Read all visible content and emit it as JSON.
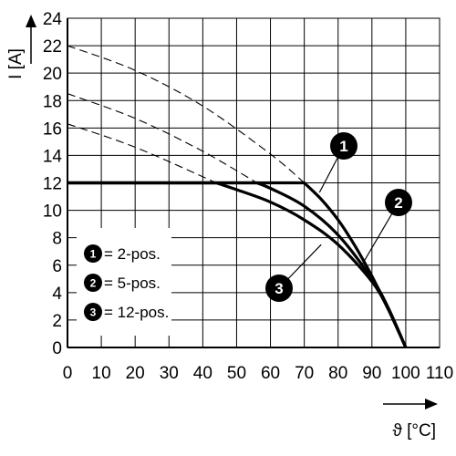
{
  "chart_data": {
    "type": "line",
    "xlabel": "ϑ [°C]",
    "ylabel": "I [A]",
    "xlim": [
      0,
      110
    ],
    "ylim": [
      0,
      24
    ],
    "x_ticks": [
      "0",
      "10",
      "20",
      "30",
      "40",
      "50",
      "60",
      "70",
      "80",
      "90",
      "100",
      "110"
    ],
    "y_ticks": [
      "0",
      "2",
      "4",
      "6",
      "8",
      "10",
      "12",
      "14",
      "16",
      "18",
      "20",
      "22",
      "24"
    ],
    "grid": true,
    "legend_position": "bottom-left",
    "legend": [
      {
        "marker": "1",
        "label": "= 2-pos."
      },
      {
        "marker": "2",
        "label": "= 5-pos."
      },
      {
        "marker": "3",
        "label": "= 12-pos."
      }
    ],
    "series": [
      {
        "name": "2-pos.",
        "marker": "1",
        "x": [
          0,
          70,
          75,
          80,
          85,
          90,
          95,
          100
        ],
        "y": [
          12,
          12,
          10.8,
          9.3,
          7.4,
          5.2,
          2.7,
          0
        ],
        "unlimited_x": [
          0,
          20,
          40,
          60,
          70
        ],
        "unlimited_y": [
          22,
          20.2,
          17.6,
          14.1,
          12
        ]
      },
      {
        "name": "5-pos.",
        "marker": "2",
        "x": [
          0,
          56,
          60,
          70,
          80,
          90,
          95,
          100
        ],
        "y": [
          12,
          12,
          11.6,
          10.3,
          8.2,
          5.0,
          2.8,
          0
        ],
        "unlimited_x": [
          0,
          20,
          40,
          56
        ],
        "unlimited_y": [
          18.5,
          16.7,
          14.3,
          12
        ]
      },
      {
        "name": "12-pos.",
        "marker": "3",
        "x": [
          0,
          44,
          50,
          60,
          70,
          80,
          90,
          95,
          100
        ],
        "y": [
          12,
          12,
          11.5,
          10.6,
          9.3,
          7.5,
          4.8,
          2.7,
          0
        ],
        "unlimited_x": [
          0,
          20,
          44
        ],
        "unlimited_y": [
          16.3,
          14.6,
          12
        ]
      }
    ],
    "markers": [
      {
        "label": "1",
        "leader_x": 74.5,
        "leader_y": 11.3
      },
      {
        "label": "2",
        "leader_x": 87.0,
        "leader_y": 6.0
      },
      {
        "label": "3",
        "leader_x": 75.0,
        "leader_y": 7.5
      }
    ]
  },
  "colors": {
    "line": "#000000",
    "grid": "#000000",
    "background": "#ffffff"
  }
}
